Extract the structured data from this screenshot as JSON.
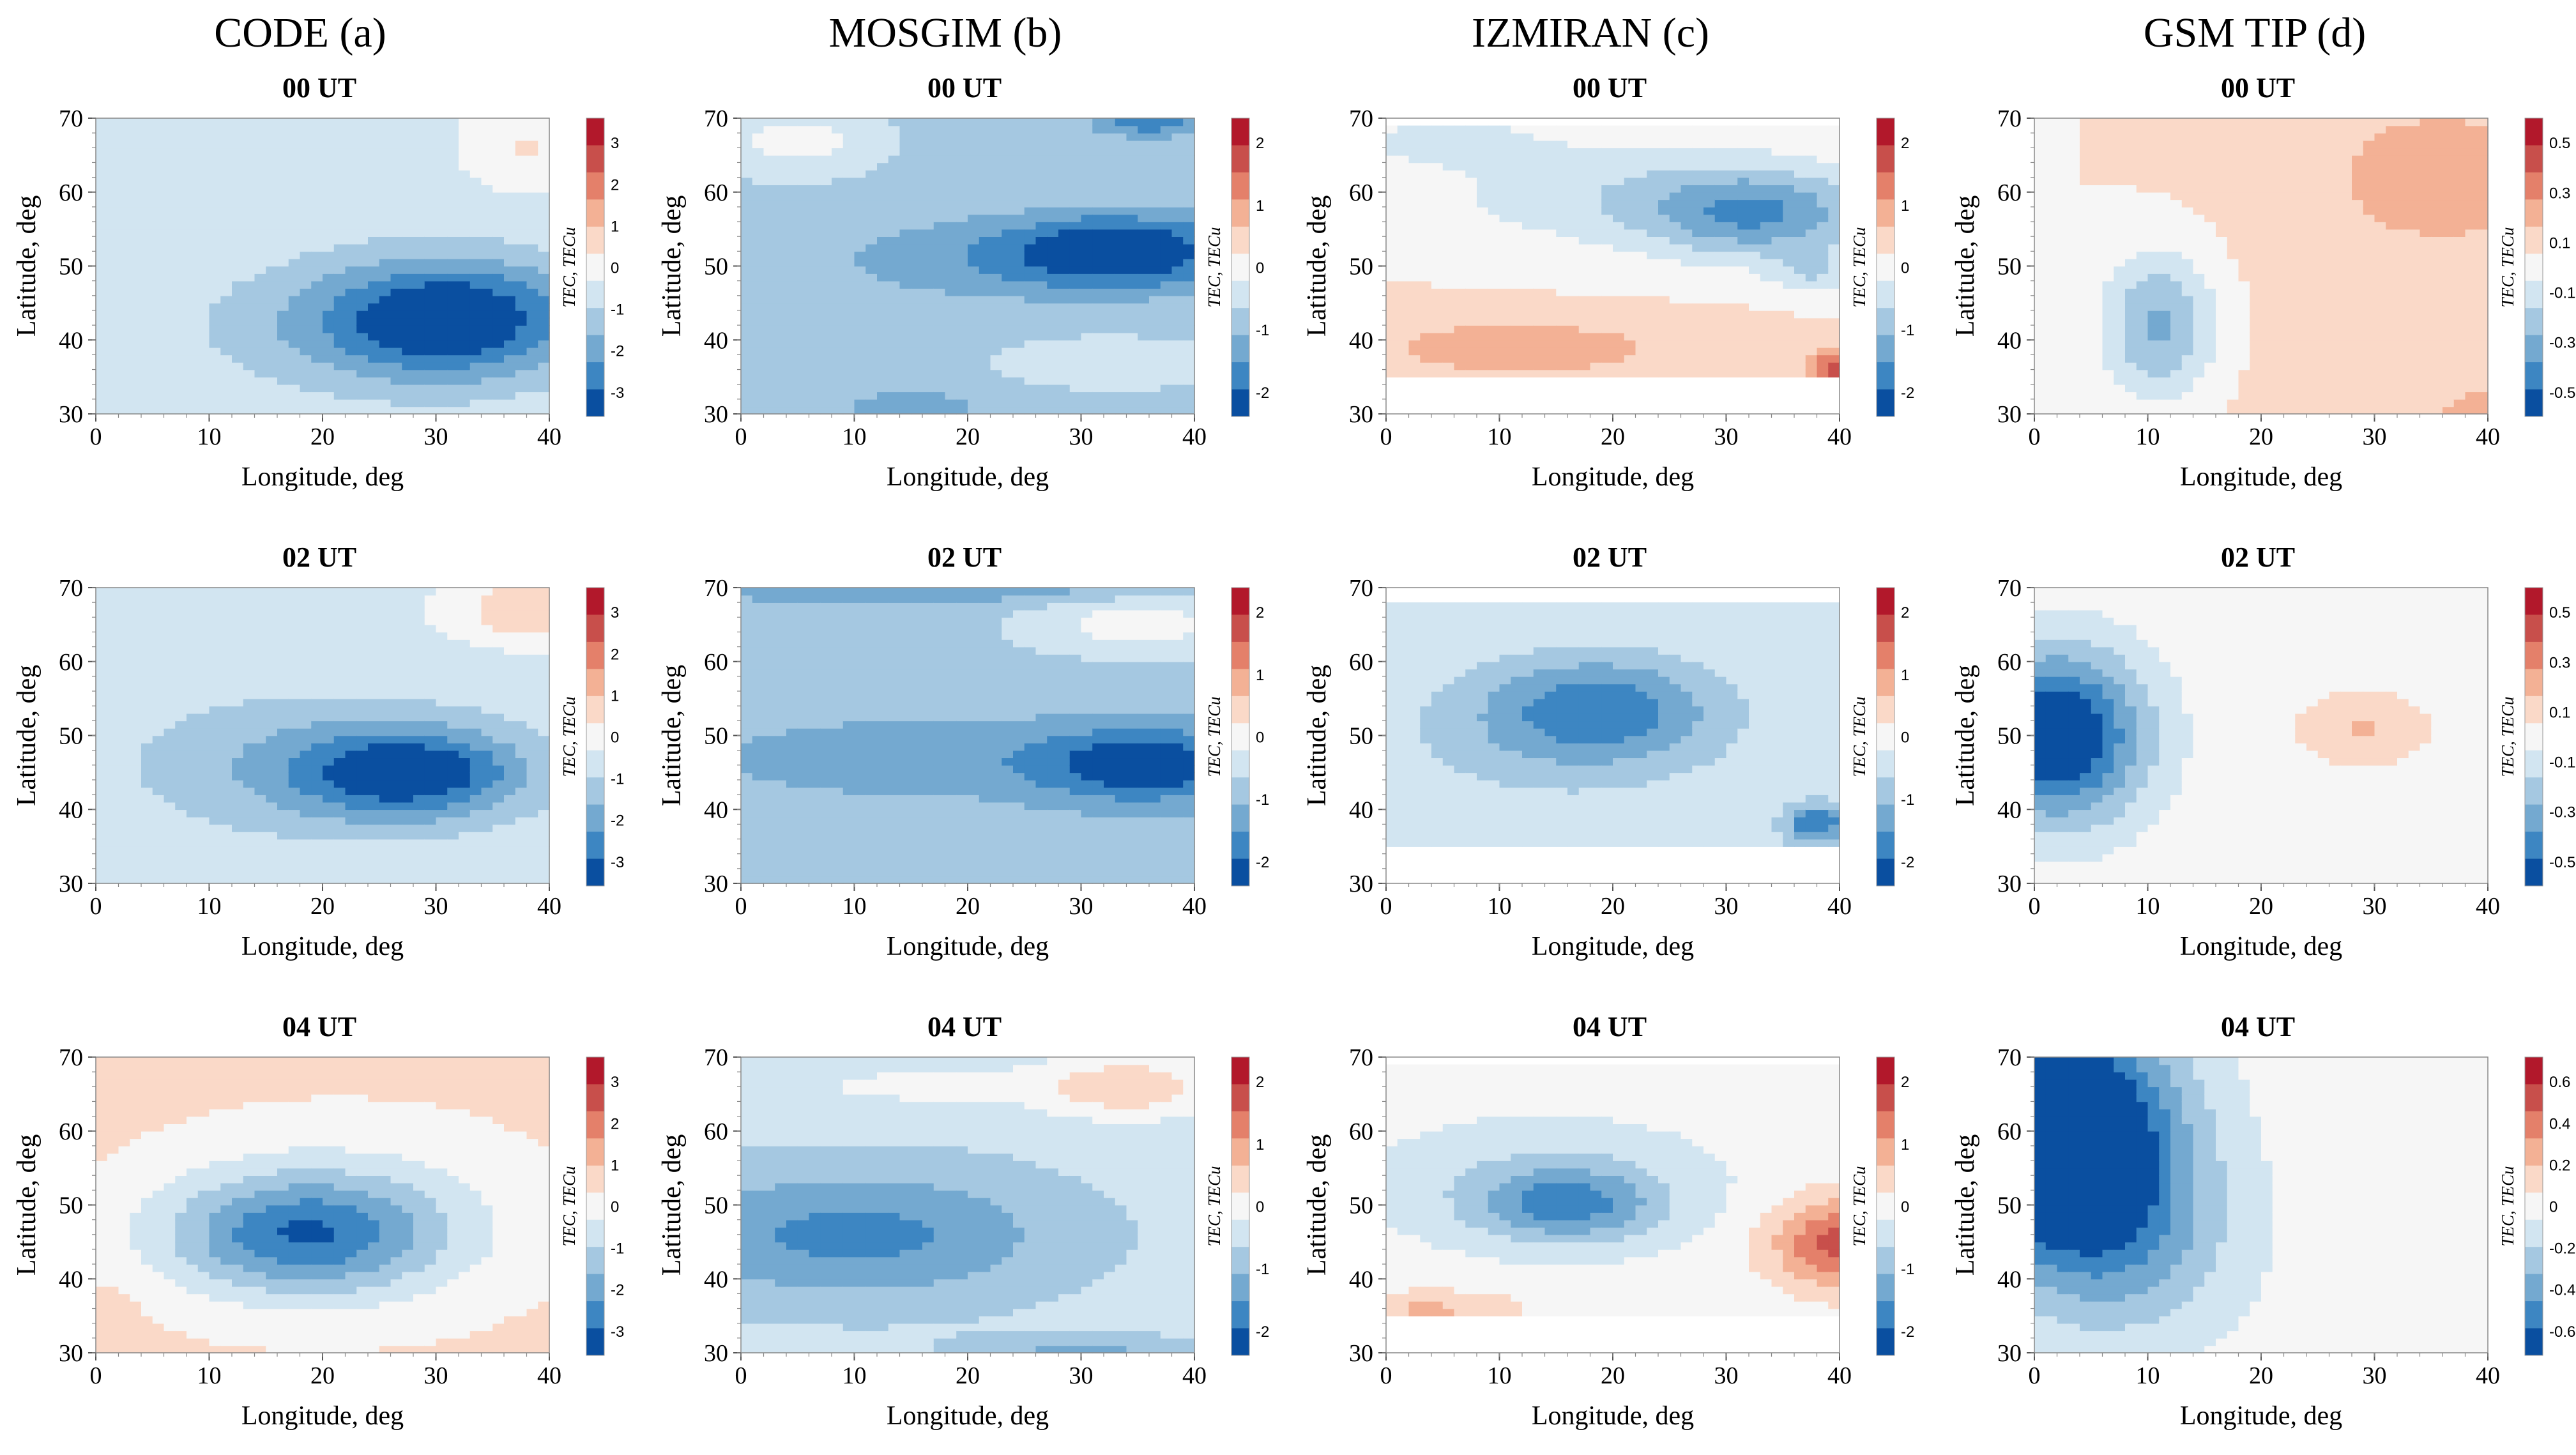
{
  "column_titles": [
    "CODE (a)",
    "MOSGIM (b)",
    "IZMIRAN (c)",
    "GSM TIP (d)"
  ],
  "row_titles": [
    "00 UT",
    "02 UT",
    "04 UT"
  ],
  "axis_text": {
    "xlabel": "Longitude, deg",
    "ylabel": "Latitude, deg",
    "cblabel": "TEC, TECu"
  },
  "colors": {
    "neg4": "#0a4fa0",
    "neg3": "#3d86c2",
    "neg2": "#74a9d0",
    "neg1": "#a5c8e1",
    "neg0": "#d2e5f1",
    "zero": "#f6f6f6",
    "pos0": "#fad9c8",
    "pos1": "#f3b195",
    "pos2": "#e4806a",
    "pos3": "#c84f4b",
    "pos4": "#b2182b"
  },
  "chart_data": [
    {
      "id": "a00",
      "type": "heatmap",
      "title": "00 UT",
      "xlabel": "Longitude, deg",
      "ylabel": "Latitude, deg",
      "xlim": [
        0,
        40
      ],
      "ylim": [
        30,
        70
      ],
      "xticks": [
        "0",
        "10",
        "20",
        "30",
        "40"
      ],
      "yticks": [
        "30",
        "40",
        "50",
        "60",
        "70"
      ],
      "colorbar": {
        "label": "TEC, TECu",
        "ticks": [
          "3",
          "2",
          "1",
          "0",
          "-1",
          "-2",
          "-3"
        ],
        "range": [
          -3,
          3
        ]
      },
      "field": {
        "base": -0.4,
        "gx": 0,
        "gy": 0,
        "domain": [
          30,
          70
        ],
        "blobs": [
          [
            32,
            43,
            -2.4,
            11,
            8
          ],
          [
            22,
            42,
            -0.8,
            14,
            9
          ],
          [
            38,
            66,
            0.7,
            5,
            5
          ]
        ]
      }
    },
    {
      "id": "b00",
      "type": "heatmap",
      "title": "00 UT",
      "xlabel": "Longitude, deg",
      "ylabel": "Latitude, deg",
      "xlim": [
        0,
        40
      ],
      "ylim": [
        30,
        70
      ],
      "xticks": [
        "0",
        "10",
        "20",
        "30",
        "40"
      ],
      "yticks": [
        "30",
        "40",
        "50",
        "60",
        "70"
      ],
      "colorbar": {
        "label": "TEC, TECu",
        "ticks": [
          "2",
          "1",
          "0",
          "-1",
          "-2"
        ],
        "range": [
          -2,
          2
        ]
      },
      "field": {
        "base": -0.6,
        "gx": 0,
        "gy": 0,
        "domain": [
          30,
          70
        ],
        "blobs": [
          [
            34,
            52,
            -1.4,
            10,
            5
          ],
          [
            20,
            51,
            -0.5,
            14,
            6
          ],
          [
            36,
            70,
            -1.0,
            5,
            2.5
          ],
          [
            5,
            67,
            0.6,
            6,
            4
          ],
          [
            32,
            37,
            0.3,
            8,
            3
          ],
          [
            15,
            31,
            -0.5,
            8,
            2.5
          ]
        ]
      }
    },
    {
      "id": "c00",
      "type": "heatmap",
      "title": "00 UT",
      "xlabel": "Longitude, deg",
      "ylabel": "Latitude, deg",
      "xlim": [
        0,
        40
      ],
      "ylim": [
        30,
        70
      ],
      "xticks": [
        "0",
        "10",
        "20",
        "30",
        "40"
      ],
      "yticks": [
        "30",
        "40",
        "50",
        "60",
        "70"
      ],
      "colorbar": {
        "label": "TEC, TECu",
        "ticks": [
          "2",
          "1",
          "0",
          "-1",
          "-2"
        ],
        "range": [
          -2,
          2
        ]
      },
      "field": {
        "base": 0.2,
        "gx": 0,
        "gy": 0,
        "domain": [
          35,
          69
        ],
        "blobs": [
          [
            33,
            57,
            -1.3,
            10,
            6
          ],
          [
            20,
            60,
            -0.6,
            18,
            8
          ],
          [
            5,
            67,
            -0.5,
            8,
            3
          ],
          [
            12,
            39,
            0.6,
            14,
            4
          ],
          [
            40,
            36,
            1.3,
            3,
            3
          ],
          [
            38,
            49,
            -0.6,
            4,
            3
          ]
        ]
      }
    },
    {
      "id": "d00",
      "type": "heatmap",
      "title": "00 UT",
      "xlabel": "Longitude, deg",
      "ylabel": "Latitude, deg",
      "xlim": [
        0,
        40
      ],
      "ylim": [
        30,
        70
      ],
      "xticks": [
        "0",
        "10",
        "20",
        "30",
        "40"
      ],
      "yticks": [
        "30",
        "40",
        "50",
        "60",
        "70"
      ],
      "colorbar": {
        "label": "TEC, TECu",
        "ticks": [
          "0.5",
          "0.3",
          "0.1",
          "-0.1",
          "-0.3",
          "-0.5"
        ],
        "range": [
          -0.5,
          0.5
        ]
      },
      "field": {
        "base": 0.04,
        "gx": 0.0015,
        "gy": 0,
        "domain": [
          30,
          70
        ],
        "blobs": [
          [
            11,
            42,
            -0.3,
            5,
            10
          ],
          [
            34,
            62,
            0.08,
            10,
            10
          ],
          [
            40,
            30,
            0.1,
            4,
            3
          ]
        ]
      }
    },
    {
      "id": "a02",
      "type": "heatmap",
      "title": "02 UT",
      "xlabel": "Longitude, deg",
      "ylabel": "Latitude, deg",
      "xlim": [
        0,
        40
      ],
      "ylim": [
        30,
        70
      ],
      "xticks": [
        "0",
        "10",
        "20",
        "30",
        "40"
      ],
      "yticks": [
        "30",
        "40",
        "50",
        "60",
        "70"
      ],
      "colorbar": {
        "label": "TEC, TECu",
        "ticks": [
          "3",
          "2",
          "1",
          "0",
          "-1",
          "-2",
          "-3"
        ],
        "range": [
          -3,
          3
        ]
      },
      "field": {
        "base": -0.4,
        "gx": 0,
        "gy": 0,
        "domain": [
          30,
          70
        ],
        "blobs": [
          [
            28,
            45,
            -2.2,
            10,
            6
          ],
          [
            18,
            46,
            -0.9,
            16,
            10
          ],
          [
            38,
            67,
            1.2,
            6,
            4
          ]
        ]
      }
    },
    {
      "id": "b02",
      "type": "heatmap",
      "title": "02 UT",
      "xlabel": "Longitude, deg",
      "ylabel": "Latitude, deg",
      "xlim": [
        0,
        40
      ],
      "ylim": [
        30,
        70
      ],
      "xticks": [
        "0",
        "10",
        "20",
        "30",
        "40"
      ],
      "yticks": [
        "30",
        "40",
        "50",
        "60",
        "70"
      ],
      "colorbar": {
        "label": "TEC, TECu",
        "ticks": [
          "2",
          "1",
          "0",
          "-1",
          "-2"
        ],
        "range": [
          -2,
          2
        ]
      },
      "field": {
        "base": -0.7,
        "gx": 0,
        "gy": 0,
        "domain": [
          30,
          70
        ],
        "blobs": [
          [
            36,
            46,
            -1.2,
            10,
            5
          ],
          [
            15,
            47,
            -0.4,
            20,
            6
          ],
          [
            35,
            65,
            0.7,
            10,
            4
          ],
          [
            15,
            70,
            -0.6,
            20,
            2
          ]
        ]
      }
    },
    {
      "id": "c02",
      "type": "heatmap",
      "title": "02 UT",
      "xlabel": "Longitude, deg",
      "ylabel": "Latitude, deg",
      "xlim": [
        0,
        40
      ],
      "ylim": [
        30,
        70
      ],
      "xticks": [
        "0",
        "10",
        "20",
        "30",
        "40"
      ],
      "yticks": [
        "30",
        "40",
        "50",
        "60",
        "70"
      ],
      "colorbar": {
        "label": "TEC, TECu",
        "ticks": [
          "2",
          "1",
          "0",
          "-1",
          "-2"
        ],
        "range": [
          -2,
          2
        ]
      },
      "field": {
        "base": -0.2,
        "gx": 0,
        "gy": 0,
        "domain": [
          35,
          68
        ],
        "blobs": [
          [
            19,
            54,
            -1.0,
            10,
            7
          ],
          [
            15,
            50,
            -0.5,
            16,
            10
          ],
          [
            38,
            38,
            -1.4,
            3,
            3
          ]
        ]
      }
    },
    {
      "id": "d02",
      "type": "heatmap",
      "title": "02 UT",
      "xlabel": "Longitude, deg",
      "ylabel": "Latitude, deg",
      "xlim": [
        0,
        40
      ],
      "ylim": [
        30,
        70
      ],
      "xticks": [
        "0",
        "10",
        "20",
        "30",
        "40"
      ],
      "yticks": [
        "30",
        "40",
        "50",
        "60",
        "70"
      ],
      "colorbar": {
        "label": "TEC, TECu",
        "ticks": [
          "0.5",
          "0.3",
          "0.1",
          "-0.1",
          "-0.3",
          "-0.5"
        ],
        "range": [
          -0.5,
          0.5
        ]
      },
      "field": {
        "base": 0.02,
        "gx": 0,
        "gy": 0,
        "domain": [
          30,
          70
        ],
        "blobs": [
          [
            2,
            50,
            -0.55,
            8,
            12
          ],
          [
            29,
            51,
            0.12,
            5,
            4
          ]
        ]
      }
    },
    {
      "id": "a04",
      "type": "heatmap",
      "title": "04 UT",
      "xlabel": "Longitude, deg",
      "ylabel": "Latitude, deg",
      "xlim": [
        0,
        40
      ],
      "ylim": [
        30,
        70
      ],
      "xticks": [
        "0",
        "10",
        "20",
        "30",
        "40"
      ],
      "yticks": [
        "30",
        "40",
        "50",
        "60",
        "70"
      ],
      "colorbar": {
        "label": "TEC, TECu",
        "ticks": [
          "3",
          "2",
          "1",
          "0",
          "-1",
          "-2",
          "-3"
        ],
        "range": [
          -3,
          3
        ]
      },
      "field": {
        "base": 0.4,
        "gx": 0,
        "gy": 0,
        "domain": [
          30,
          70
        ],
        "blobs": [
          [
            18,
            46,
            -2.2,
            12,
            8
          ],
          [
            22,
            48,
            -0.8,
            16,
            12
          ],
          [
            0,
            35,
            0.5,
            3,
            3
          ]
        ]
      }
    },
    {
      "id": "b04",
      "type": "heatmap",
      "title": "04 UT",
      "xlabel": "Longitude, deg",
      "ylabel": "Latitude, deg",
      "xlim": [
        0,
        40
      ],
      "ylim": [
        30,
        70
      ],
      "xticks": [
        "0",
        "10",
        "20",
        "30",
        "40"
      ],
      "yticks": [
        "30",
        "40",
        "50",
        "60",
        "70"
      ],
      "colorbar": {
        "label": "TEC, TECu",
        "ticks": [
          "2",
          "1",
          "0",
          "-1",
          "-2"
        ],
        "range": [
          -2,
          2
        ]
      },
      "field": {
        "base": -0.4,
        "gx": 0,
        "gy": 0,
        "domain": [
          30,
          70
        ],
        "blobs": [
          [
            10,
            46,
            -1.0,
            18,
            9
          ],
          [
            34,
            66,
            0.9,
            8,
            4
          ],
          [
            30,
            30,
            -0.6,
            10,
            2.5
          ],
          [
            15,
            66,
            0.3,
            12,
            3
          ]
        ]
      }
    },
    {
      "id": "c04",
      "type": "heatmap",
      "title": "04 UT",
      "xlabel": "Longitude, deg",
      "ylabel": "Latitude, deg",
      "xlim": [
        0,
        40
      ],
      "ylim": [
        30,
        70
      ],
      "xticks": [
        "0",
        "10",
        "20",
        "30",
        "40"
      ],
      "yticks": [
        "30",
        "40",
        "50",
        "60",
        "70"
      ],
      "colorbar": {
        "label": "TEC, TECu",
        "ticks": [
          "2",
          "1",
          "0",
          "-1",
          "-2"
        ],
        "range": [
          -2,
          2
        ]
      },
      "field": {
        "base": 0,
        "gx": 0,
        "gy": 0,
        "domain": [
          35,
          69
        ],
        "blobs": [
          [
            16,
            50,
            -1.1,
            8,
            5
          ],
          [
            14,
            53,
            -0.5,
            16,
            9
          ],
          [
            40,
            45,
            1.4,
            6,
            6
          ],
          [
            4,
            36,
            0.6,
            8,
            2.5
          ]
        ]
      }
    },
    {
      "id": "d04",
      "type": "heatmap",
      "title": "04 UT",
      "xlabel": "Longitude, deg",
      "ylabel": "Latitude, deg",
      "xlim": [
        0,
        40
      ],
      "ylim": [
        30,
        70
      ],
      "xticks": [
        "0",
        "10",
        "20",
        "30",
        "40"
      ],
      "yticks": [
        "30",
        "40",
        "50",
        "60",
        "70"
      ],
      "colorbar": {
        "label": "TEC, TECu",
        "ticks": [
          "0.6",
          "0.4",
          "0.2",
          "0",
          "-0.2",
          "-0.4",
          "-0.6"
        ],
        "range": [
          -0.6,
          0.6
        ]
      },
      "field": {
        "base": 0,
        "gx": 0,
        "gy": 0,
        "domain": [
          30,
          70
        ],
        "blobs": [
          [
            2,
            60,
            -0.85,
            10,
            16
          ],
          [
            8,
            45,
            -0.25,
            10,
            14
          ]
        ]
      }
    }
  ]
}
